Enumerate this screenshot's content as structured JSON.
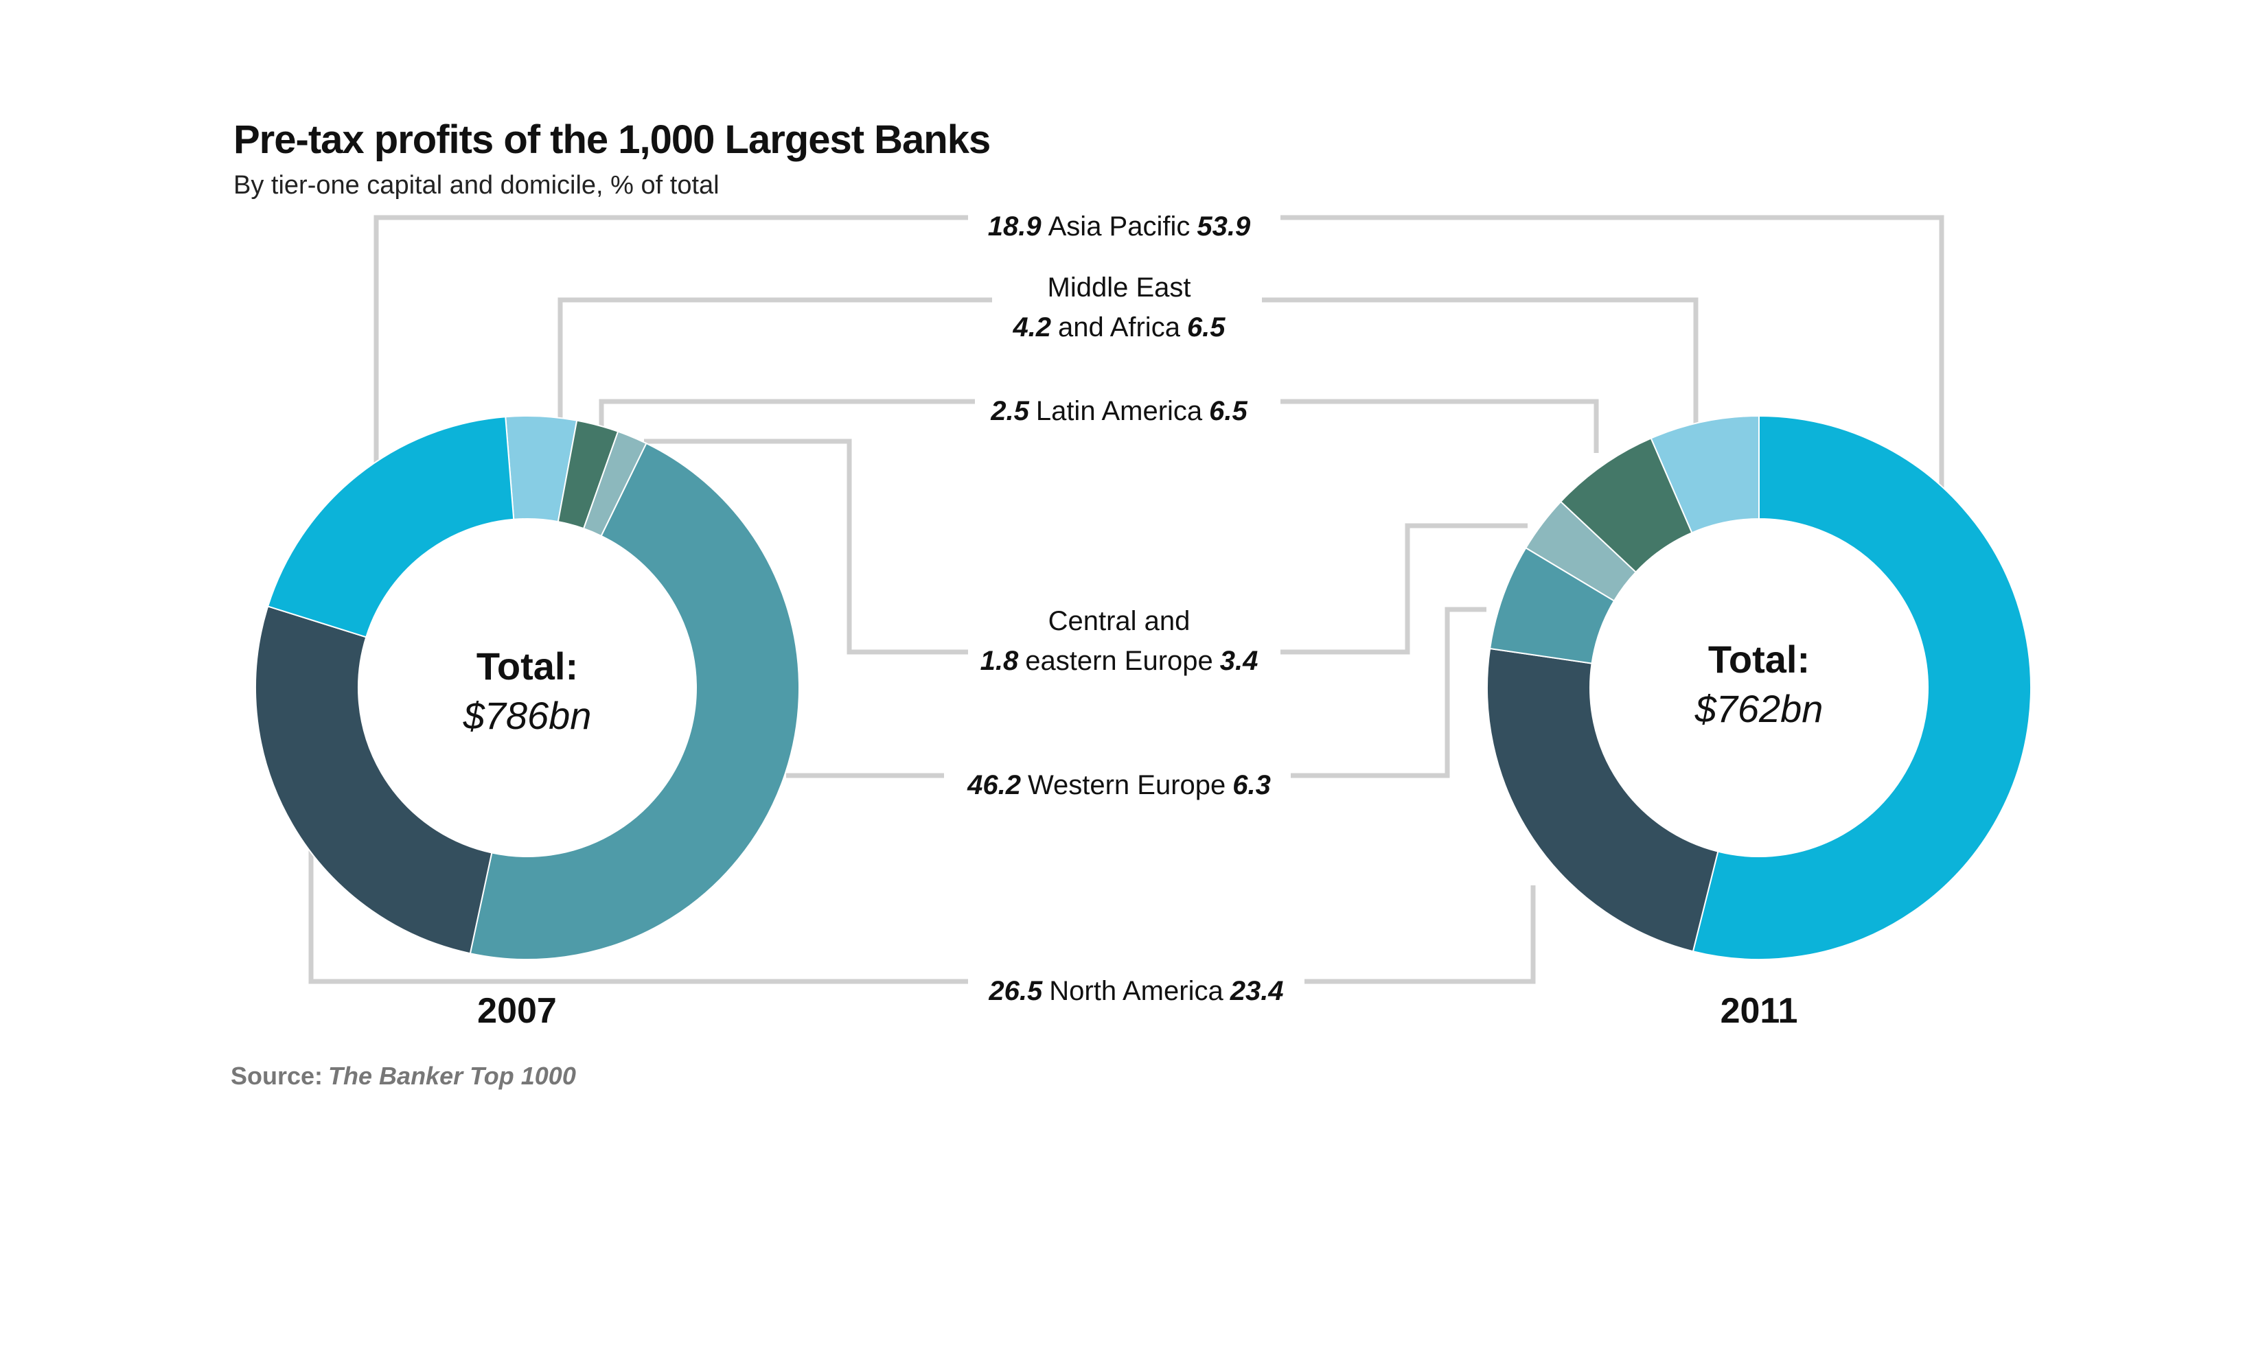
{
  "title": "Pre-tax profits of the 1,000 Largest Banks",
  "subtitle": "By tier-one capital and domicile, % of total",
  "source": {
    "label": "Source:",
    "name": "The Banker Top 1000"
  },
  "colors": {
    "Asia Pacific": "#0cb3d9",
    "Middle East and Africa": "#87cde4",
    "Latin America": "#447868",
    "Central and eastern Europe": "#8cb8bd",
    "Western Europe": "#4f9ba8",
    "North America": "#344f5e",
    "leader": "#cfcfcf"
  },
  "chart_data": [
    {
      "type": "pie",
      "variant": "donut",
      "year": "2007",
      "total_label": "Total:",
      "total_value": "$786bn",
      "categories": [
        "Middle East and Africa",
        "Latin America",
        "Central and eastern Europe",
        "Western Europe",
        "North America",
        "Asia Pacific"
      ],
      "values": [
        4.2,
        2.5,
        1.8,
        46.2,
        26.5,
        18.9
      ]
    },
    {
      "type": "pie",
      "variant": "donut",
      "year": "2011",
      "total_label": "Total:",
      "total_value": "$762bn",
      "categories": [
        "Asia Pacific",
        "North America",
        "Western Europe",
        "Central and eastern Europe",
        "Latin America",
        "Middle East and Africa"
      ],
      "values": [
        53.9,
        23.4,
        6.3,
        3.4,
        6.5,
        6.5
      ]
    }
  ],
  "labels": [
    {
      "key": "Asia Pacific",
      "lines": [
        {
          "v2007": "18.9",
          "text": "Asia Pacific",
          "v2011": "53.9"
        }
      ]
    },
    {
      "key": "Middle East and Africa",
      "lines": [
        {
          "text": "Middle East"
        },
        {
          "v2007": "4.2",
          "text": "and Africa",
          "v2011": "6.5"
        }
      ]
    },
    {
      "key": "Latin America",
      "lines": [
        {
          "v2007": "2.5",
          "text": "Latin America",
          "v2011": "6.5"
        }
      ]
    },
    {
      "key": "Central and eastern Europe",
      "lines": [
        {
          "text": "Central and"
        },
        {
          "v2007": "1.8",
          "text": "eastern Europe",
          "v2011": "3.4"
        }
      ]
    },
    {
      "key": "Western Europe",
      "lines": [
        {
          "v2007": "46.2",
          "text": "Western Europe",
          "v2011": "6.3"
        }
      ]
    },
    {
      "key": "North America",
      "lines": [
        {
          "v2007": "26.5",
          "text": "North America",
          "v2011": "23.4"
        }
      ]
    }
  ]
}
